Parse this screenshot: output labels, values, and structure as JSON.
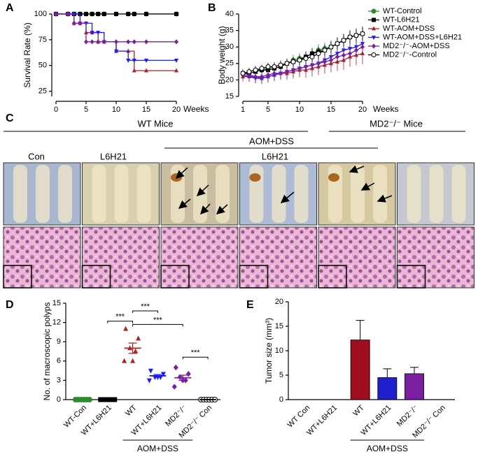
{
  "chart_data": [
    {
      "type": "line",
      "step": true,
      "panel": "A",
      "ylabel": "Survival Rate (%)",
      "xlabel": "Weeks",
      "xlim": [
        0,
        20
      ],
      "xticks": [
        0,
        5,
        10,
        15,
        20
      ],
      "ylim": [
        20,
        100
      ],
      "yticks": [
        25,
        50,
        75,
        100
      ],
      "x": [
        0,
        2,
        3,
        4,
        5,
        6,
        7,
        8,
        10,
        12,
        13,
        15,
        20
      ],
      "series": [
        {
          "color": "#2e8b2e",
          "marker": "circle",
          "values": [
            100,
            100,
            100,
            100,
            100,
            100,
            100,
            100,
            100,
            100,
            100,
            100,
            100
          ]
        },
        {
          "color": "#000000",
          "marker": "square",
          "values": [
            100,
            100,
            100,
            100,
            100,
            100,
            100,
            100,
            100,
            100,
            100,
            100,
            100
          ]
        },
        {
          "color": "#b22222",
          "marker": "triangle",
          "values": [
            100,
            100,
            91,
            91,
            82,
            82,
            73,
            73,
            64,
            64,
            45,
            45,
            45
          ]
        },
        {
          "color": "#1a1aff",
          "marker": "triangle-down",
          "values": [
            100,
            100,
            100,
            91,
            91,
            82,
            82,
            73,
            64,
            55,
            55,
            55,
            55
          ]
        },
        {
          "color": "#7b1fa2",
          "marker": "diamond",
          "values": [
            100,
            100,
            91,
            91,
            73,
            73,
            73,
            73,
            73,
            73,
            73,
            73,
            73
          ]
        }
      ]
    },
    {
      "type": "line",
      "panel": "B",
      "ylabel": "Body weight (g)",
      "xlabel": "Weeks",
      "legend": "right",
      "xlim": [
        1,
        20
      ],
      "xticks": [
        1,
        5,
        10,
        15,
        20
      ],
      "ylim": [
        15,
        40
      ],
      "yticks": [
        15,
        20,
        25,
        30,
        35,
        40
      ],
      "x": [
        1,
        2,
        3,
        4,
        5,
        6,
        7,
        8,
        9,
        10,
        11,
        12,
        13,
        14,
        15,
        16,
        17,
        18,
        19,
        20
      ],
      "series": [
        {
          "name": "WT-Control",
          "color": "#2e8b2e",
          "marker": "circle",
          "values": [
            22,
            22.5,
            23,
            23,
            23.5,
            24,
            24.5,
            25,
            26,
            26.5,
            27,
            28,
            29,
            29.5,
            30,
            31,
            32,
            33,
            33.5,
            34
          ],
          "errors": [
            1.2,
            1.2,
            1.3,
            1.3,
            1.4,
            1.4,
            1.5,
            1.5,
            1.6,
            1.6,
            1.7,
            1.8,
            1.8,
            1.9,
            2,
            2,
            2.1,
            2.2,
            2.2,
            2.3
          ]
        },
        {
          "name": "WT-L6H21",
          "color": "#000000",
          "marker": "square",
          "values": [
            22,
            22,
            22.5,
            23,
            23,
            23.5,
            24,
            25,
            25.5,
            26,
            27,
            28,
            28.5,
            29,
            30,
            31,
            32,
            33,
            33.5,
            34
          ],
          "errors": [
            1,
            1.1,
            1.1,
            1.2,
            1.2,
            1.3,
            1.3,
            1.4,
            1.4,
            1.5,
            1.5,
            1.6,
            1.6,
            1.7,
            1.7,
            1.8,
            1.8,
            1.9,
            1.9,
            2
          ]
        },
        {
          "name": "WT-AOM+DSS",
          "color": "#b22222",
          "marker": "triangle",
          "values": [
            21,
            21,
            21,
            20.5,
            21,
            21.5,
            22,
            22,
            22.5,
            23,
            23,
            23.5,
            24,
            24.5,
            25,
            25.5,
            26,
            27,
            27.5,
            28
          ],
          "errors": [
            1.5,
            1.6,
            1.7,
            1.8,
            1.8,
            1.9,
            2,
            2,
            2.1,
            2.2,
            2.3,
            2.4,
            2.5,
            2.6,
            2.7,
            2.8,
            2.9,
            3,
            3.1,
            3.2
          ]
        },
        {
          "name": "WT-AOM+DSS+L6H21",
          "color": "#1a1aff",
          "marker": "triangle-down",
          "values": [
            21.5,
            21,
            20.5,
            20.5,
            21,
            21.5,
            22,
            22.5,
            23,
            23.5,
            24,
            24.5,
            25,
            26,
            27,
            28,
            29,
            29.5,
            30,
            31
          ],
          "errors": [
            1.3,
            1.4,
            1.5,
            1.5,
            1.6,
            1.6,
            1.7,
            1.7,
            1.8,
            1.8,
            1.9,
            1.9,
            2,
            2,
            2.1,
            2.1,
            2.2,
            2.2,
            2.3,
            2.3
          ]
        },
        {
          "name": "MD2⁻/⁻-AOM+DSS",
          "color": "#7b1fa2",
          "marker": "diamond",
          "values": [
            22,
            21.5,
            21,
            21,
            21.5,
            22,
            22,
            22.5,
            23,
            23.5,
            24,
            24.5,
            25,
            25.5,
            26,
            27,
            27.5,
            28,
            29,
            30
          ],
          "errors": [
            1.3,
            1.3,
            1.4,
            1.4,
            1.5,
            1.5,
            1.6,
            1.6,
            1.7,
            1.7,
            1.8,
            1.8,
            1.9,
            1.9,
            2,
            2,
            2.1,
            2.1,
            2.2,
            2.2
          ]
        },
        {
          "name": "MD2⁻/⁻-Control",
          "color": "#000000",
          "marker": "open-circle",
          "values": [
            22,
            22.5,
            23,
            23.5,
            24,
            24,
            24.5,
            25,
            25.5,
            26,
            26.5,
            27,
            28,
            29,
            30,
            31,
            32,
            33,
            33.5,
            34
          ],
          "errors": [
            1,
            1,
            1.1,
            1.1,
            1.2,
            1.2,
            1.3,
            1.3,
            1.4,
            1.4,
            1.5,
            1.5,
            1.6,
            1.6,
            1.7,
            1.7,
            1.8,
            1.8,
            1.9,
            1.9
          ]
        }
      ]
    },
    {
      "type": "strip",
      "panel": "D",
      "ylabel": "No. of macroscopic polyps",
      "ylim": [
        0,
        15
      ],
      "yticks": [
        0,
        3,
        6,
        9,
        12,
        15
      ],
      "categories": [
        "WT-Con",
        "WT+L6H21",
        "WT",
        "WT+L6H21",
        "MD2⁻/⁻",
        "MD2⁻/⁻ Con"
      ],
      "colors": [
        "#2e8b2e",
        "#000000",
        "#b22222",
        "#1a1aff",
        "#7b1fa2",
        "#000000"
      ],
      "markers": [
        "circle",
        "square",
        "triangle",
        "triangle-down",
        "diamond",
        "open-circle"
      ],
      "points": [
        [
          0,
          0,
          0,
          0,
          0,
          0
        ],
        [
          0,
          0,
          0,
          0,
          0,
          0
        ],
        [
          11,
          9.5,
          8,
          7.5,
          6,
          6
        ],
        [
          4.5,
          4,
          3.5,
          3.5,
          3.5,
          3
        ],
        [
          5,
          4,
          3.5,
          3,
          3,
          2
        ],
        [
          0,
          0,
          0,
          0,
          0,
          0
        ]
      ],
      "means": [
        0,
        0,
        8,
        3.7,
        3.4,
        0
      ],
      "sems": [
        0,
        0,
        0.8,
        0.2,
        0.4,
        0
      ],
      "annotations": [
        {
          "from": 2,
          "to": 3,
          "y": 13.8,
          "label": "***"
        },
        {
          "from": 1,
          "to": 2,
          "y": 12.2,
          "label": "***"
        },
        {
          "from": 2,
          "to": 4,
          "y": 11.7,
          "label": "***"
        },
        {
          "from": 4,
          "to": 5,
          "y": 6.6,
          "label": "***"
        }
      ],
      "group": {
        "label": "AOM+DSS",
        "from": 2,
        "to": 4
      }
    },
    {
      "type": "bar",
      "panel": "E",
      "ylabel": "Tumor size (mm³)",
      "ylim": [
        0,
        20
      ],
      "yticks": [
        0,
        5,
        10,
        15,
        20
      ],
      "categories": [
        "WT Con",
        "WT+L6H21",
        "WT",
        "WT+L6H21",
        "MD2⁻/⁻",
        "MD2⁻/⁻ Con"
      ],
      "colors": [
        "#a00d1f",
        "#a00d1f",
        "#a00d1f",
        "#1f1fd0",
        "#7a1fa0",
        "#7a1fa0"
      ],
      "values": [
        0,
        0,
        12.2,
        4.5,
        5.3,
        0
      ],
      "errors": [
        0,
        0,
        4,
        1.8,
        1.3,
        0
      ],
      "group": {
        "label": "AOM+DSS",
        "from": 2,
        "to": 4
      }
    }
  ],
  "panel_c": {
    "panel": "C",
    "groups": [
      "WT Mice",
      "MD2⁻/⁻ Mice",
      "AOM+DSS"
    ],
    "columns": [
      "Con",
      "L6H21",
      "L6H21"
    ]
  }
}
